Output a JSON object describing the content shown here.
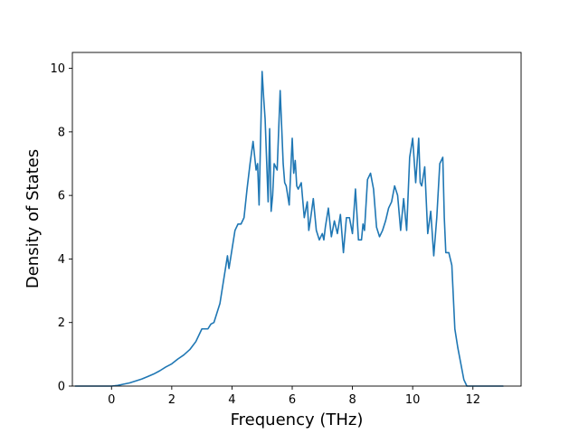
{
  "chart_data": {
    "type": "line",
    "title": "",
    "xlabel": "Frequency (THz)",
    "ylabel": "Density of States",
    "xlim": [
      -1.3,
      13.6
    ],
    "ylim": [
      0,
      10.5
    ],
    "xticks": [
      0,
      2,
      4,
      6,
      8,
      10,
      12
    ],
    "yticks": [
      0,
      2,
      4,
      6,
      8,
      10
    ],
    "grid": false,
    "line_color": "#1f77b4",
    "series": [
      {
        "x": [
          -1.2,
          -0.8,
          -0.4,
          0,
          0.2,
          0.4,
          0.6,
          0.8,
          1.0,
          1.2,
          1.4,
          1.6,
          1.8,
          2.0,
          2.2,
          2.4,
          2.6,
          2.8,
          3.0,
          3.2,
          3.3,
          3.4,
          3.5,
          3.6,
          3.7,
          3.8,
          3.85,
          3.9,
          4.0,
          4.1,
          4.2,
          4.3,
          4.4,
          4.5,
          4.6,
          4.7,
          4.8,
          4.85,
          4.9,
          5.0,
          5.05,
          5.1,
          5.2,
          5.25,
          5.3,
          5.35,
          5.4,
          5.5,
          5.6,
          5.7,
          5.75,
          5.8,
          5.9,
          6.0,
          6.05,
          6.1,
          6.15,
          6.2,
          6.3,
          6.4,
          6.5,
          6.55,
          6.6,
          6.7,
          6.8,
          6.9,
          7.0,
          7.05,
          7.1,
          7.2,
          7.3,
          7.4,
          7.5,
          7.6,
          7.7,
          7.8,
          7.9,
          8.0,
          8.1,
          8.2,
          8.3,
          8.35,
          8.4,
          8.5,
          8.6,
          8.7,
          8.8,
          8.9,
          9.0,
          9.1,
          9.2,
          9.3,
          9.4,
          9.5,
          9.6,
          9.7,
          9.8,
          9.9,
          10.0,
          10.1,
          10.2,
          10.25,
          10.3,
          10.4,
          10.5,
          10.6,
          10.7,
          10.8,
          10.9,
          11.0,
          11.05,
          11.1,
          11.2,
          11.3,
          11.4,
          11.5,
          11.6,
          11.7,
          11.8,
          11.9,
          12.0,
          12.5,
          13.0
        ],
        "y": [
          0,
          0,
          0,
          0,
          0.02,
          0.06,
          0.1,
          0.16,
          0.22,
          0.3,
          0.38,
          0.48,
          0.6,
          0.7,
          0.85,
          0.98,
          1.15,
          1.4,
          1.8,
          1.8,
          1.95,
          2.0,
          2.3,
          2.6,
          3.2,
          3.8,
          4.1,
          3.7,
          4.3,
          4.9,
          5.1,
          5.1,
          5.3,
          6.2,
          7.0,
          7.7,
          6.8,
          7.0,
          5.7,
          9.9,
          9.1,
          8.4,
          5.8,
          8.1,
          5.5,
          6.0,
          7.0,
          6.8,
          9.3,
          7.0,
          6.4,
          6.3,
          5.7,
          7.8,
          6.7,
          7.1,
          6.3,
          6.2,
          6.4,
          5.3,
          5.8,
          4.9,
          5.2,
          5.9,
          4.9,
          4.6,
          4.8,
          4.6,
          5.0,
          5.6,
          4.7,
          5.2,
          4.8,
          5.4,
          4.2,
          5.3,
          5.3,
          4.8,
          6.2,
          4.6,
          4.6,
          5.1,
          4.9,
          6.5,
          6.7,
          6.2,
          5.0,
          4.7,
          4.9,
          5.2,
          5.6,
          5.8,
          6.3,
          6.0,
          4.9,
          5.9,
          4.9,
          7.2,
          7.8,
          6.4,
          7.8,
          6.4,
          6.3,
          6.9,
          4.8,
          5.5,
          4.1,
          5.3,
          7.0,
          7.2,
          5.3,
          4.2,
          4.2,
          3.8,
          1.8,
          1.2,
          0.7,
          0.2,
          0,
          0,
          0,
          0,
          0
        ]
      }
    ]
  }
}
